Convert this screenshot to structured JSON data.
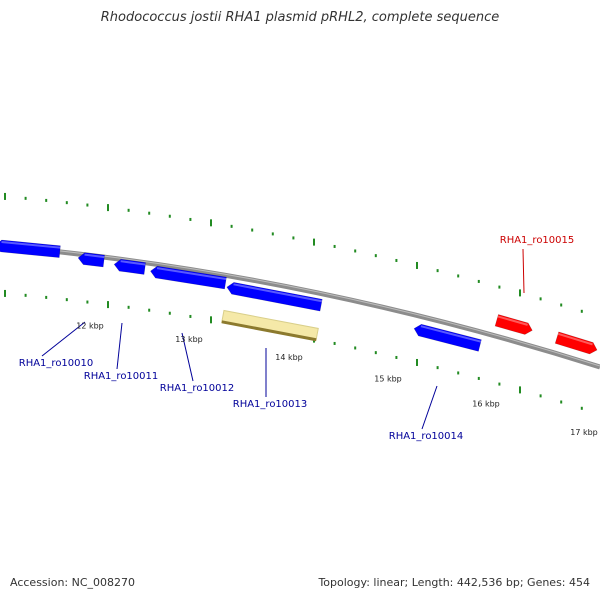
{
  "title": "Rhodococcus jostii RHA1 plasmid pRHL2, complete sequence",
  "colors": {
    "backbone": "#8c8c8c",
    "forward_gene": "#ff0000",
    "reverse_gene": "#0000ff",
    "highlight": "#f5e9a8",
    "tick": "#228b22",
    "forward_label": "#cc0000",
    "reverse_label": "#000099"
  },
  "ticks": [
    {
      "label": "12 kbp"
    },
    {
      "label": "13 kbp"
    },
    {
      "label": "14 kbp"
    },
    {
      "label": "15 kbp"
    },
    {
      "label": "16 kbp"
    },
    {
      "label": "17 kbp"
    }
  ],
  "genes": [
    {
      "name": "",
      "strand": "reverse"
    },
    {
      "name": "RHA1_ro10010",
      "strand": "reverse"
    },
    {
      "name": "RHA1_ro10011",
      "strand": "reverse"
    },
    {
      "name": "RHA1_ro10012",
      "strand": "reverse"
    },
    {
      "name": "RHA1_ro10013",
      "strand": "reverse"
    },
    {
      "name": "RHA1_ro10014",
      "strand": "reverse"
    },
    {
      "name": "RHA1_ro10015",
      "strand": "forward"
    },
    {
      "name": "",
      "strand": "forward"
    }
  ],
  "footer": {
    "accession": "Accession: NC_008270",
    "summary": "Topology: linear; Length: 442,536 bp; Genes: 454"
  }
}
